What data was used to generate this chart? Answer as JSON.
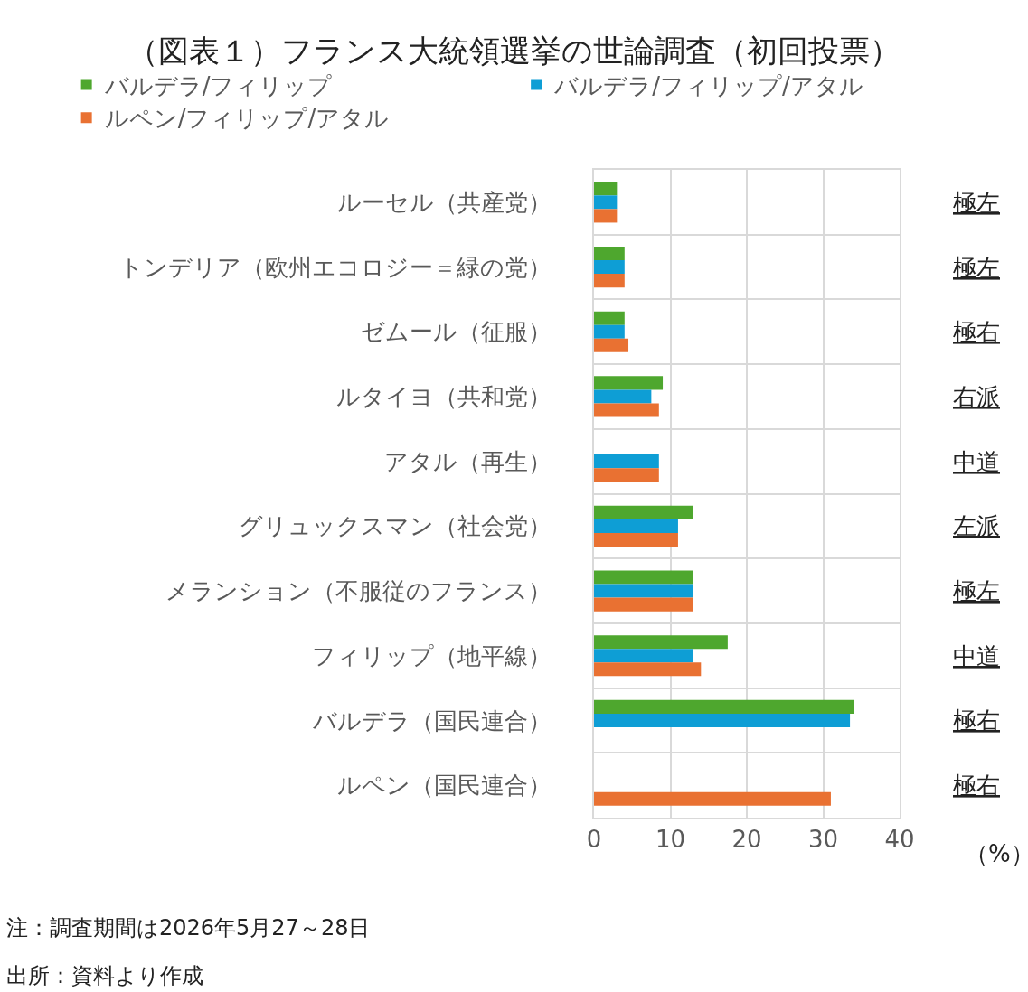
{
  "chart_data": {
    "type": "bar",
    "orientation": "horizontal",
    "title": "（図表１）フランス大統領選挙の世論調査（初回投票）",
    "categories": [
      "ルーセル（共産党）",
      "トンデリア（欧州エコロジー＝緑の党）",
      "ゼムール（征服）",
      "ルタイヨ（共和党）",
      "アタル（再生）",
      "グリュックスマン（社会党）",
      "メランション（不服従のフランス）",
      "フィリップ（地平線）",
      "バルデラ（国民連合）",
      "ルペン（国民連合）"
    ],
    "series": [
      {
        "name": "バルデラ/フィリップ",
        "color": "#4ea72e",
        "values": [
          3,
          4,
          4,
          9,
          null,
          13,
          13,
          17.5,
          34,
          null
        ]
      },
      {
        "name": "バルデラ/フィリップ/アタル",
        "color": "#0e9ed5",
        "values": [
          3,
          4,
          4,
          7.5,
          8.5,
          11,
          13,
          13,
          33.5,
          null
        ]
      },
      {
        "name": "ルペン/フィリップ/アタル",
        "color": "#e97132",
        "values": [
          3,
          4,
          4.5,
          8.5,
          8.5,
          11,
          13,
          14,
          null,
          31
        ]
      }
    ],
    "xlabel": "（%）",
    "xlim": [
      0,
      40
    ],
    "xticks": [
      0,
      10,
      20,
      30,
      40
    ],
    "grid": true,
    "legend": "top",
    "annotations": [
      "極左",
      "極左",
      "極右",
      "右派",
      "中道",
      "左派",
      "極左",
      "中道",
      "極右",
      "極右",
      "注：調査期間は2026年5月27～28日",
      "出所：資料より作成"
    ]
  }
}
